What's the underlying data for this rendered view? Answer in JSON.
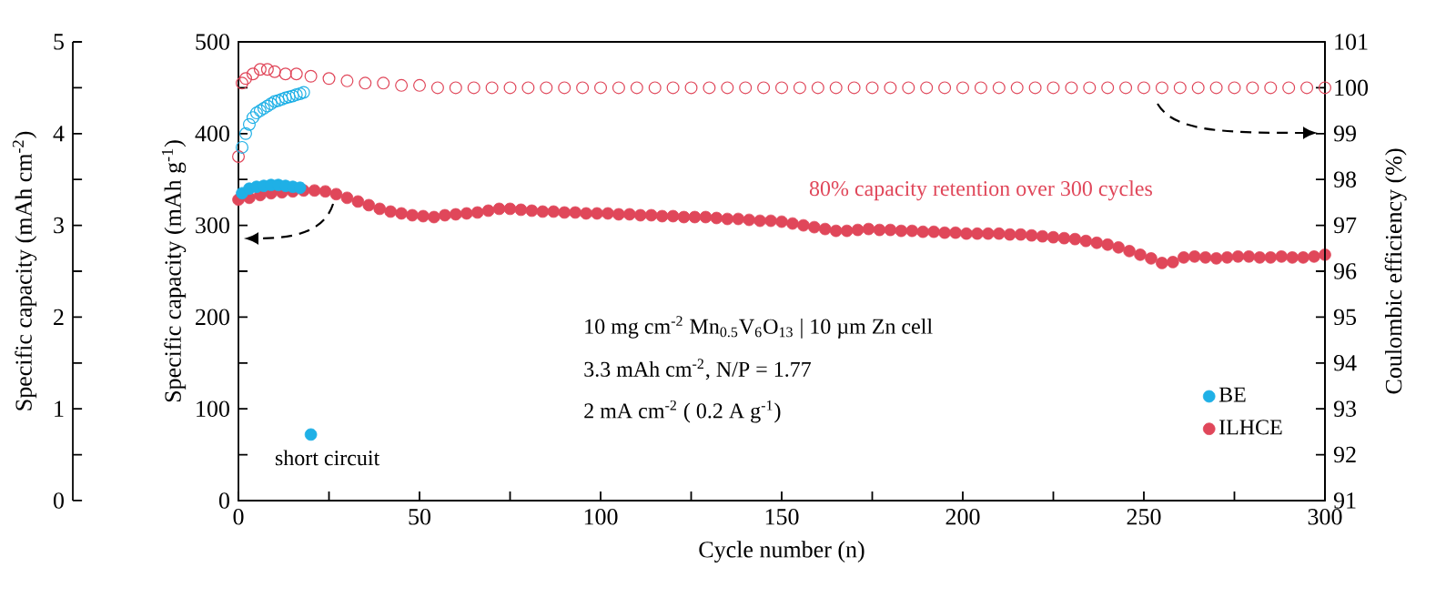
{
  "chart_data": {
    "type": "scatter",
    "xlabel": "Cycle number (n)",
    "ylabel": "Specific capacity (mAh g$^{-1}$)",
    "y2label": "Coulombic efficiency (%)",
    "y3label": "Specific capacity (mAh cm$^{-2}$)",
    "xlim": [
      0,
      300
    ],
    "ylim": [
      0,
      500
    ],
    "y2lim": [
      91,
      101
    ],
    "y3lim": [
      0,
      5
    ],
    "xticks": [
      0,
      {
        "value": 25,
        "label": null
      },
      50,
      {
        "value": 75,
        "label": null
      },
      100,
      {
        "value": 125,
        "label": null
      },
      150,
      {
        "value": 175,
        "label": null
      },
      200,
      {
        "value": 225,
        "label": null
      },
      250,
      {
        "value": 275,
        "label": null
      },
      300
    ],
    "yticks": [
      0,
      {
        "value": 50,
        "label": null
      },
      100,
      {
        "value": 150,
        "label": null
      },
      200,
      {
        "value": 250,
        "label": null
      },
      300,
      {
        "value": 350,
        "label": null
      },
      400,
      {
        "value": 450,
        "label": null
      },
      500
    ],
    "y2ticks": [
      91,
      92,
      93,
      94,
      95,
      96,
      97,
      98,
      99,
      100,
      101
    ],
    "y3ticks": [
      0,
      {
        "value": 0.5,
        "label": null
      },
      1,
      {
        "value": 1.5,
        "label": null
      },
      2,
      {
        "value": 2.5,
        "label": null
      },
      3,
      {
        "value": 3.5,
        "label": null
      },
      4,
      {
        "value": 4.5,
        "label": null
      },
      5
    ],
    "marker": "circle",
    "legend": "bottom right",
    "annotations": [
      "80% capacity retention over 300 cycles",
      "10 mg cm$^{-2}$ Mn$_{0.5}$V$_{6}$O$_{13}$ | 10 µm Zn cell",
      "3.3 mAh cm$^{-2}$, N/P = 1.77",
      "2 mA cm$^{-2}$ ( 0.2 A g$^{-1}$)",
      {
        "text": "short circuit",
        "x": 20,
        "y": 72
      }
    ],
    "series": [
      {
        "name": "BE",
        "color": "#1fb0e6",
        "axis": "y",
        "x": [
          1,
          3,
          5,
          7,
          9,
          11,
          13,
          15,
          17,
          20
        ],
        "values": [
          335,
          340,
          342,
          343,
          344,
          344,
          343,
          342,
          341,
          72
        ]
      },
      {
        "name": "ILHCE",
        "color": "#e0475a",
        "axis": "y",
        "x": [
          0,
          3,
          6,
          9,
          12,
          15,
          18,
          21,
          24,
          27,
          30,
          33,
          36,
          39,
          42,
          45,
          48,
          51,
          54,
          57,
          60,
          63,
          66,
          69,
          72,
          75,
          78,
          81,
          84,
          87,
          90,
          93,
          96,
          99,
          102,
          105,
          108,
          111,
          114,
          117,
          120,
          123,
          126,
          129,
          132,
          135,
          138,
          141,
          144,
          147,
          150,
          153,
          156,
          159,
          162,
          165,
          168,
          171,
          174,
          177,
          180,
          183,
          186,
          189,
          192,
          195,
          198,
          201,
          204,
          207,
          210,
          213,
          216,
          219,
          222,
          225,
          228,
          231,
          234,
          237,
          240,
          243,
          246,
          249,
          252,
          255,
          258,
          261,
          264,
          267,
          270,
          273,
          276,
          279,
          282,
          285,
          288,
          291,
          294,
          297,
          300
        ],
        "values": [
          328,
          330,
          333,
          335,
          336,
          337,
          338,
          338,
          337,
          334,
          330,
          326,
          322,
          318,
          315,
          313,
          311,
          310,
          309,
          311,
          312,
          313,
          314,
          316,
          318,
          318,
          317,
          316,
          315,
          315,
          314,
          314,
          313,
          313,
          313,
          312,
          312,
          311,
          311,
          310,
          310,
          309,
          309,
          309,
          308,
          307,
          307,
          306,
          305,
          305,
          304,
          302,
          300,
          298,
          296,
          294,
          294,
          295,
          296,
          295,
          295,
          294,
          294,
          293,
          293,
          292,
          292,
          291,
          291,
          291,
          291,
          290,
          290,
          289,
          288,
          287,
          286,
          285,
          283,
          281,
          279,
          276,
          272,
          268,
          264,
          259,
          260,
          265,
          266,
          265,
          264,
          265,
          266,
          266,
          265,
          265,
          266,
          265,
          265,
          266,
          268
        ]
      },
      {
        "color": "#1fb0e6",
        "axis": "y2",
        "x": [
          1,
          2,
          3,
          4,
          5,
          6,
          7,
          8,
          9,
          10,
          11,
          12,
          13,
          14,
          15,
          16,
          17,
          18
        ],
        "values": [
          98.7,
          99.0,
          99.2,
          99.35,
          99.45,
          99.5,
          99.55,
          99.6,
          99.65,
          99.7,
          99.72,
          99.75,
          99.78,
          99.8,
          99.82,
          99.85,
          99.87,
          99.9
        ]
      },
      {
        "color": "#e0475a",
        "axis": "y2",
        "x": [
          0,
          1,
          2,
          4,
          6,
          8,
          10,
          13,
          16,
          20,
          25,
          30,
          35,
          40,
          45,
          50,
          55,
          60,
          65,
          70,
          75,
          80,
          85,
          90,
          95,
          100,
          105,
          110,
          115,
          120,
          125,
          130,
          135,
          140,
          145,
          150,
          155,
          160,
          165,
          170,
          175,
          180,
          185,
          190,
          195,
          200,
          205,
          210,
          215,
          220,
          225,
          230,
          235,
          240,
          245,
          250,
          255,
          260,
          265,
          270,
          275,
          280,
          285,
          290,
          295,
          300
        ],
        "values": [
          98.5,
          100.1,
          100.2,
          100.3,
          100.4,
          100.4,
          100.35,
          100.3,
          100.3,
          100.25,
          100.2,
          100.15,
          100.1,
          100.1,
          100.05,
          100.05,
          100.0,
          100.0,
          100.0,
          100.0,
          100.0,
          100.0,
          100.0,
          100.0,
          100.0,
          100.0,
          100.0,
          100.0,
          100.0,
          100.0,
          100.0,
          100.0,
          100.0,
          100.0,
          100.0,
          100.0,
          100.0,
          100.0,
          100.0,
          100.0,
          100.0,
          100.0,
          100.0,
          100.0,
          100.0,
          100.0,
          100.0,
          100.0,
          100.0,
          100.0,
          100.0,
          100.0,
          100.0,
          100.0,
          100.0,
          100.0,
          100.0,
          100.0,
          100.0,
          100.0,
          100.0,
          100.0,
          100.0,
          100.0,
          100.0,
          100.0
        ]
      }
    ]
  }
}
